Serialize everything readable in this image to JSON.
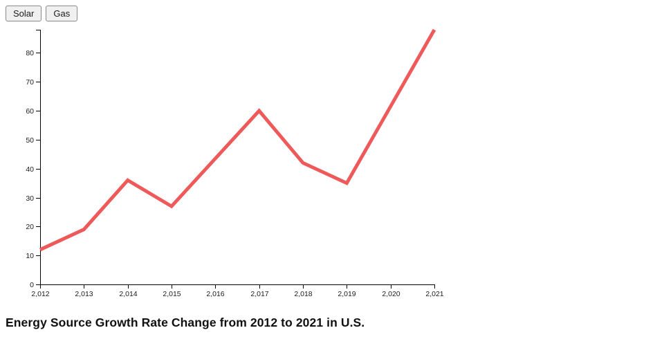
{
  "toolbar": {
    "buttons": [
      {
        "id": "solar",
        "label": "Solar"
      },
      {
        "id": "gas",
        "label": "Gas"
      }
    ]
  },
  "colors": {
    "line": "#ee5a5a",
    "axis": "#000000",
    "tick_text": "#1a1a1a",
    "title_text": "#111111"
  },
  "chart_data": {
    "type": "line",
    "title": "Energy Source Growth Rate Change from 2012 to 2021 in U.S.",
    "xlabel": "",
    "ylabel": "",
    "x": [
      2012,
      2013,
      2014,
      2015,
      2016,
      2017,
      2018,
      2019,
      2020,
      2021
    ],
    "x_tick_labels": [
      "2,012",
      "2,013",
      "2,014",
      "2,015",
      "2,016",
      "2,017",
      "2,018",
      "2,019",
      "2,020",
      "2,021"
    ],
    "y_ticks": [
      0,
      10,
      20,
      30,
      40,
      50,
      60,
      70,
      80
    ],
    "ylim": [
      0,
      88
    ],
    "grid": false,
    "legend_position": "none",
    "series": [
      {
        "name": "Solar",
        "color": "#ee5a5a",
        "values": [
          12,
          19,
          36,
          27,
          43.5,
          60,
          42,
          35,
          61.5,
          88
        ]
      }
    ]
  }
}
